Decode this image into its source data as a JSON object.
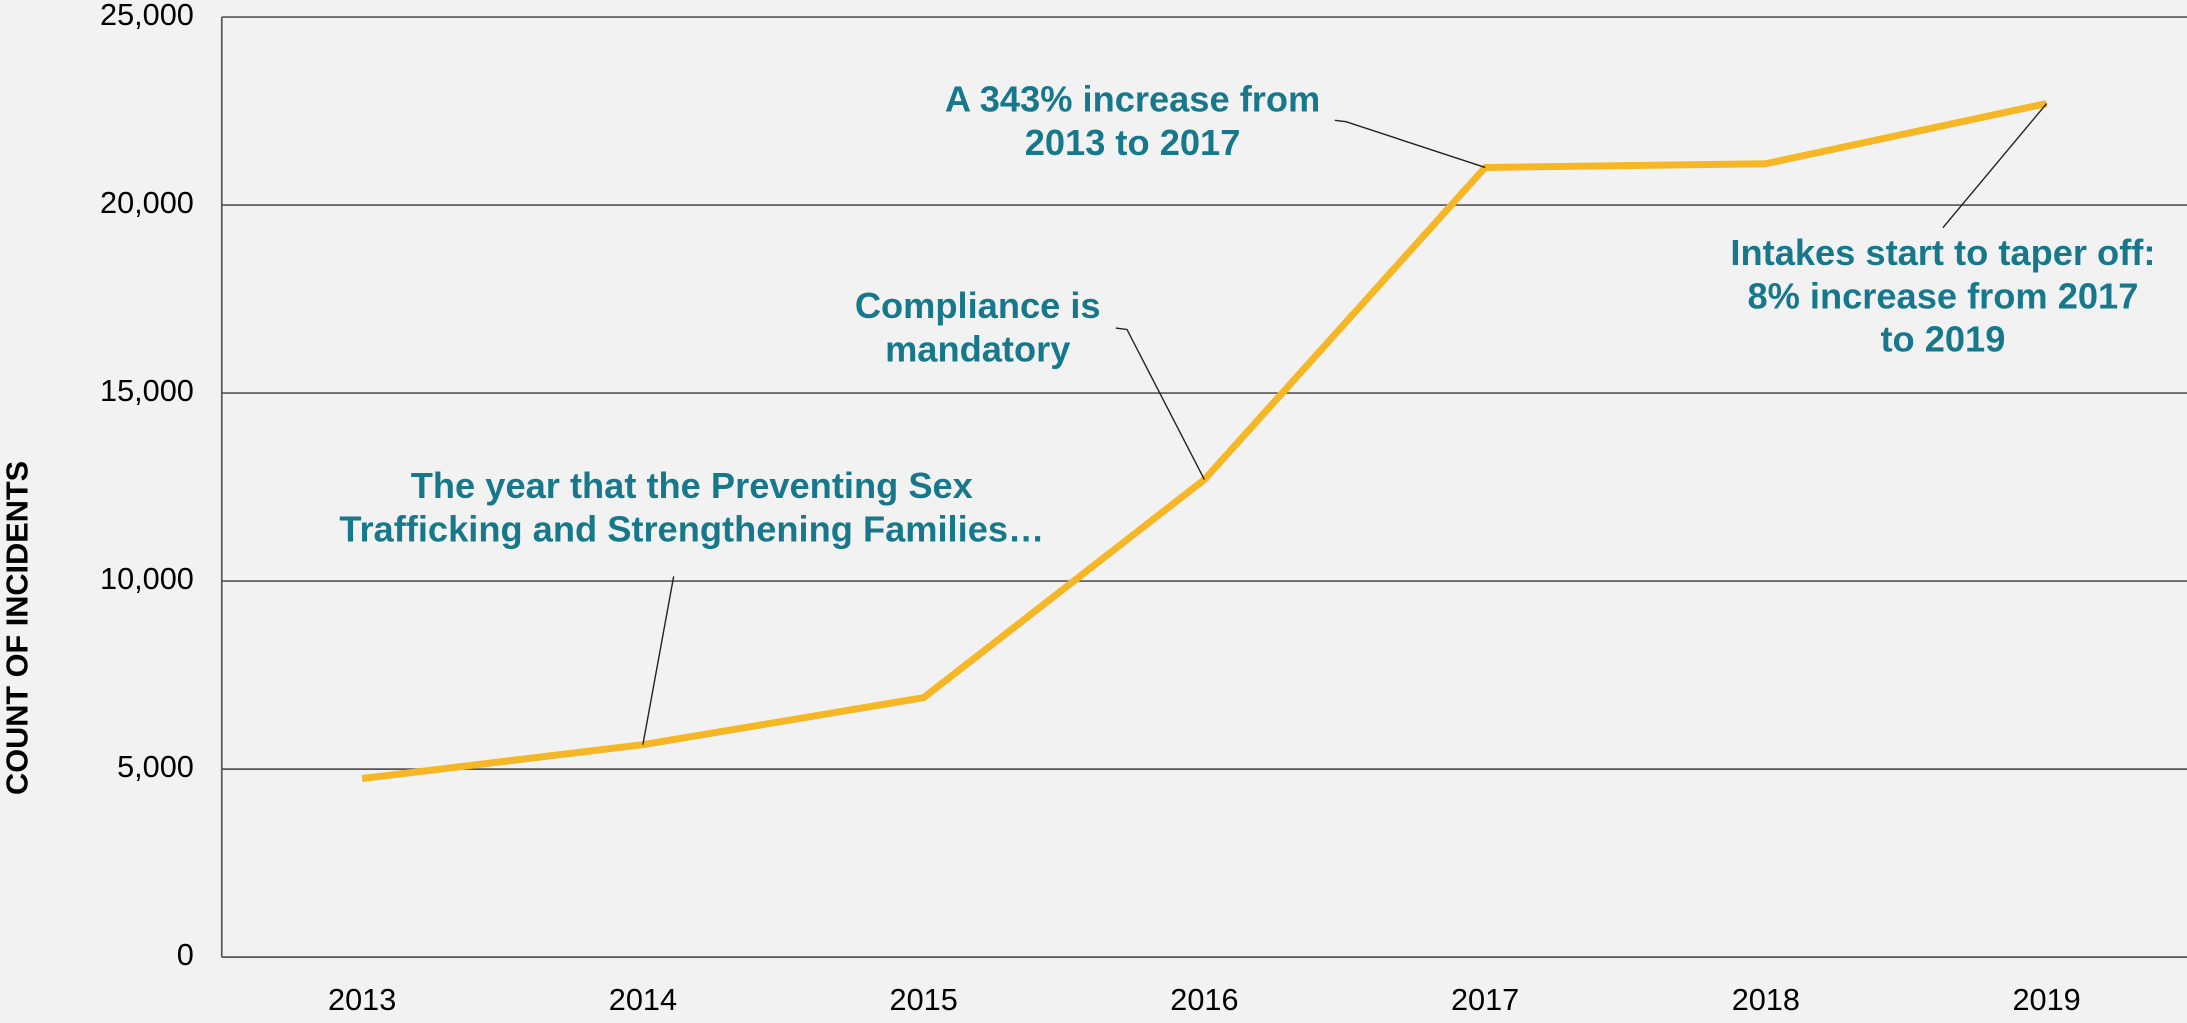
{
  "chart_data": {
    "type": "line",
    "y_label": "COUNT OF INCIDENTS",
    "categories": [
      "2013",
      "2014",
      "2015",
      "2016",
      "2017",
      "2018",
      "2019"
    ],
    "series": [
      {
        "name": "Intakes",
        "color": "#f5b726",
        "values": [
          4750,
          5650,
          6900,
          12700,
          21000,
          21100,
          22700
        ]
      }
    ],
    "ylim": [
      0,
      25000
    ],
    "yticks": [
      0,
      {
        "value": 5000,
        "label": "5,000"
      },
      {
        "value": 10000,
        "label": "10,000"
      },
      {
        "value": 15000,
        "label": "15,000"
      },
      {
        "value": 20000,
        "label": "20,000"
      },
      {
        "value": 25000,
        "label": "25,000"
      }
    ],
    "grid": true,
    "annotations": [
      {
        "lines": [
          "The year that the Preventing Sex",
          "Trafficking and Strengthening Families…"
        ]
      },
      {
        "lines": [
          "Compliance is",
          "mandatory"
        ]
      },
      {
        "lines": [
          "A 343% increase from",
          "2013 to 2017"
        ]
      },
      {
        "lines": [
          "Intakes start to taper off:",
          "8% increase from 2017",
          "to 2019"
        ]
      }
    ]
  }
}
